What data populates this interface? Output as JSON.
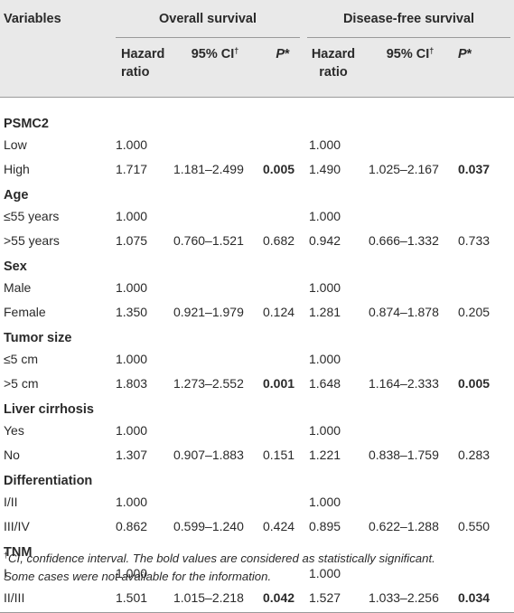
{
  "header": {
    "variables": "Variables",
    "overall_survival": "Overall survival",
    "disease_free_survival": "Disease-free survival",
    "hazard_ratio_line1": "Hazard",
    "hazard_ratio_line2": "ratio",
    "ci_label": "95% CI",
    "ci_mark": "†",
    "p_label": "P",
    "p_mark": "*"
  },
  "groups": [
    {
      "name": "PSMC2",
      "rows": [
        {
          "label": "Low",
          "os_hr": "1.000",
          "os_ci": "",
          "os_p": "",
          "os_sig": false,
          "dfs_hr": "1.000",
          "dfs_ci": "",
          "dfs_p": "",
          "dfs_sig": false
        },
        {
          "label": "High",
          "os_hr": "1.717",
          "os_ci": "1.181–2.499",
          "os_p": "0.005",
          "os_sig": true,
          "dfs_hr": "1.490",
          "dfs_ci": "1.025–2.167",
          "dfs_p": "0.037",
          "dfs_sig": true
        }
      ]
    },
    {
      "name": "Age",
      "rows": [
        {
          "label": "≤55 years",
          "os_hr": "1.000",
          "os_ci": "",
          "os_p": "",
          "os_sig": false,
          "dfs_hr": "1.000",
          "dfs_ci": "",
          "dfs_p": "",
          "dfs_sig": false
        },
        {
          "label": ">55 years",
          "os_hr": "1.075",
          "os_ci": "0.760–1.521",
          "os_p": "0.682",
          "os_sig": false,
          "dfs_hr": "0.942",
          "dfs_ci": "0.666–1.332",
          "dfs_p": "0.733",
          "dfs_sig": false
        }
      ]
    },
    {
      "name": "Sex",
      "rows": [
        {
          "label": "Male",
          "os_hr": "1.000",
          "os_ci": "",
          "os_p": "",
          "os_sig": false,
          "dfs_hr": "1.000",
          "dfs_ci": "",
          "dfs_p": "",
          "dfs_sig": false
        },
        {
          "label": "Female",
          "os_hr": "1.350",
          "os_ci": "0.921–1.979",
          "os_p": "0.124",
          "os_sig": false,
          "dfs_hr": "1.281",
          "dfs_ci": "0.874–1.878",
          "dfs_p": "0.205",
          "dfs_sig": false
        }
      ]
    },
    {
      "name": "Tumor size",
      "rows": [
        {
          "label": "≤5 cm",
          "os_hr": "1.000",
          "os_ci": "",
          "os_p": "",
          "os_sig": false,
          "dfs_hr": "1.000",
          "dfs_ci": "",
          "dfs_p": "",
          "dfs_sig": false
        },
        {
          "label": ">5 cm",
          "os_hr": "1.803",
          "os_ci": "1.273–2.552",
          "os_p": "0.001",
          "os_sig": true,
          "dfs_hr": "1.648",
          "dfs_ci": "1.164–2.333",
          "dfs_p": "0.005",
          "dfs_sig": true
        }
      ]
    },
    {
      "name": "Liver cirrhosis",
      "rows": [
        {
          "label": "Yes",
          "os_hr": "1.000",
          "os_ci": "",
          "os_p": "",
          "os_sig": false,
          "dfs_hr": "1.000",
          "dfs_ci": "",
          "dfs_p": "",
          "dfs_sig": false
        },
        {
          "label": "No",
          "os_hr": "1.307",
          "os_ci": "0.907–1.883",
          "os_p": "0.151",
          "os_sig": false,
          "dfs_hr": "1.221",
          "dfs_ci": "0.838–1.759",
          "dfs_p": "0.283",
          "dfs_sig": false
        }
      ]
    },
    {
      "name": "Differentiation",
      "rows": [
        {
          "label": "I/II",
          "os_hr": "1.000",
          "os_ci": "",
          "os_p": "",
          "os_sig": false,
          "dfs_hr": "1.000",
          "dfs_ci": "",
          "dfs_p": "",
          "dfs_sig": false
        },
        {
          "label": "III/IV",
          "os_hr": "0.862",
          "os_ci": "0.599–1.240",
          "os_p": "0.424",
          "os_sig": false,
          "dfs_hr": "0.895",
          "dfs_ci": "0.622–1.288",
          "dfs_p": "0.550",
          "dfs_sig": false
        }
      ]
    },
    {
      "name": "TNM",
      "rows": [
        {
          "label": "I",
          "os_hr": "1.000",
          "os_ci": "",
          "os_p": "",
          "os_sig": false,
          "dfs_hr": "1.000",
          "dfs_ci": "",
          "dfs_p": "",
          "dfs_sig": false
        },
        {
          "label": "II/III",
          "os_hr": "1.501",
          "os_ci": "1.015–2.218",
          "os_p": "0.042",
          "os_sig": true,
          "dfs_hr": "1.527",
          "dfs_ci": "1.033–2.256",
          "dfs_p": "0.034",
          "dfs_sig": true
        }
      ]
    }
  ],
  "footnote": {
    "mark": "†",
    "line1": "CI, confidence interval. The bold values are considered as statistically significant.",
    "line2": "Some cases were not available for the information."
  }
}
